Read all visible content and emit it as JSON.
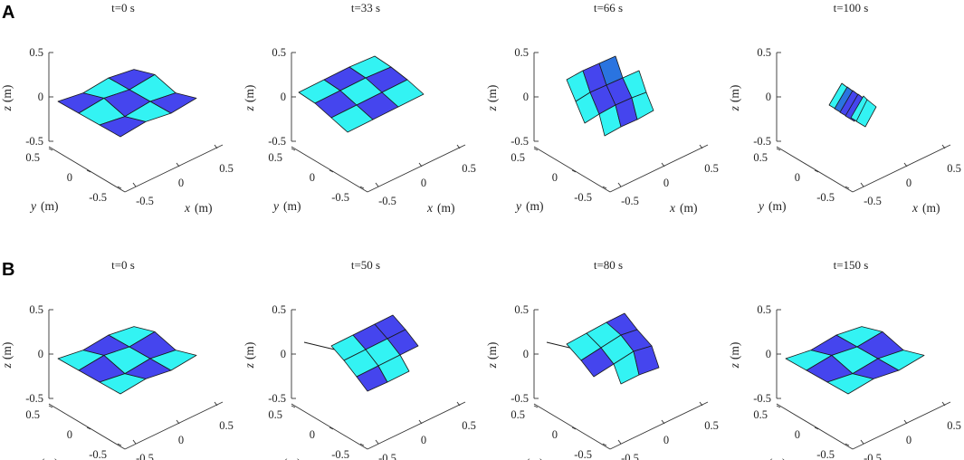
{
  "figure": {
    "rows": [
      {
        "label": "A",
        "panels": [
          {
            "title": "t=0 s",
            "state": "flat"
          },
          {
            "title": "t=33 s",
            "state": "slightly-folded"
          },
          {
            "title": "t=66 s",
            "state": "half-folded"
          },
          {
            "title": "t=100 s",
            "state": "fully-folded"
          }
        ]
      },
      {
        "label": "B",
        "panels": [
          {
            "title": "t=0 s",
            "state": "flat"
          },
          {
            "title": "t=50 s",
            "state": "twisted"
          },
          {
            "title": "t=80 s",
            "state": "twisted-folded"
          },
          {
            "title": "t=150 s",
            "state": "flat"
          }
        ]
      }
    ],
    "axes": {
      "z_ticks": [
        "0.5",
        "0",
        "-0.5"
      ],
      "y_ticks": [
        "0.5",
        "0",
        "-0.5"
      ],
      "x_ticks": [
        "-0.5",
        "0",
        "0.5"
      ],
      "z_label": "z",
      "y_label": "y",
      "x_label": "x",
      "unit": "(m)"
    },
    "colors": {
      "dark_face": "#4545ee",
      "light_face": "#33f3f3",
      "mid_face": "#2a74e0",
      "edge": "#1a1a1a",
      "axis": "#333333"
    }
  }
}
